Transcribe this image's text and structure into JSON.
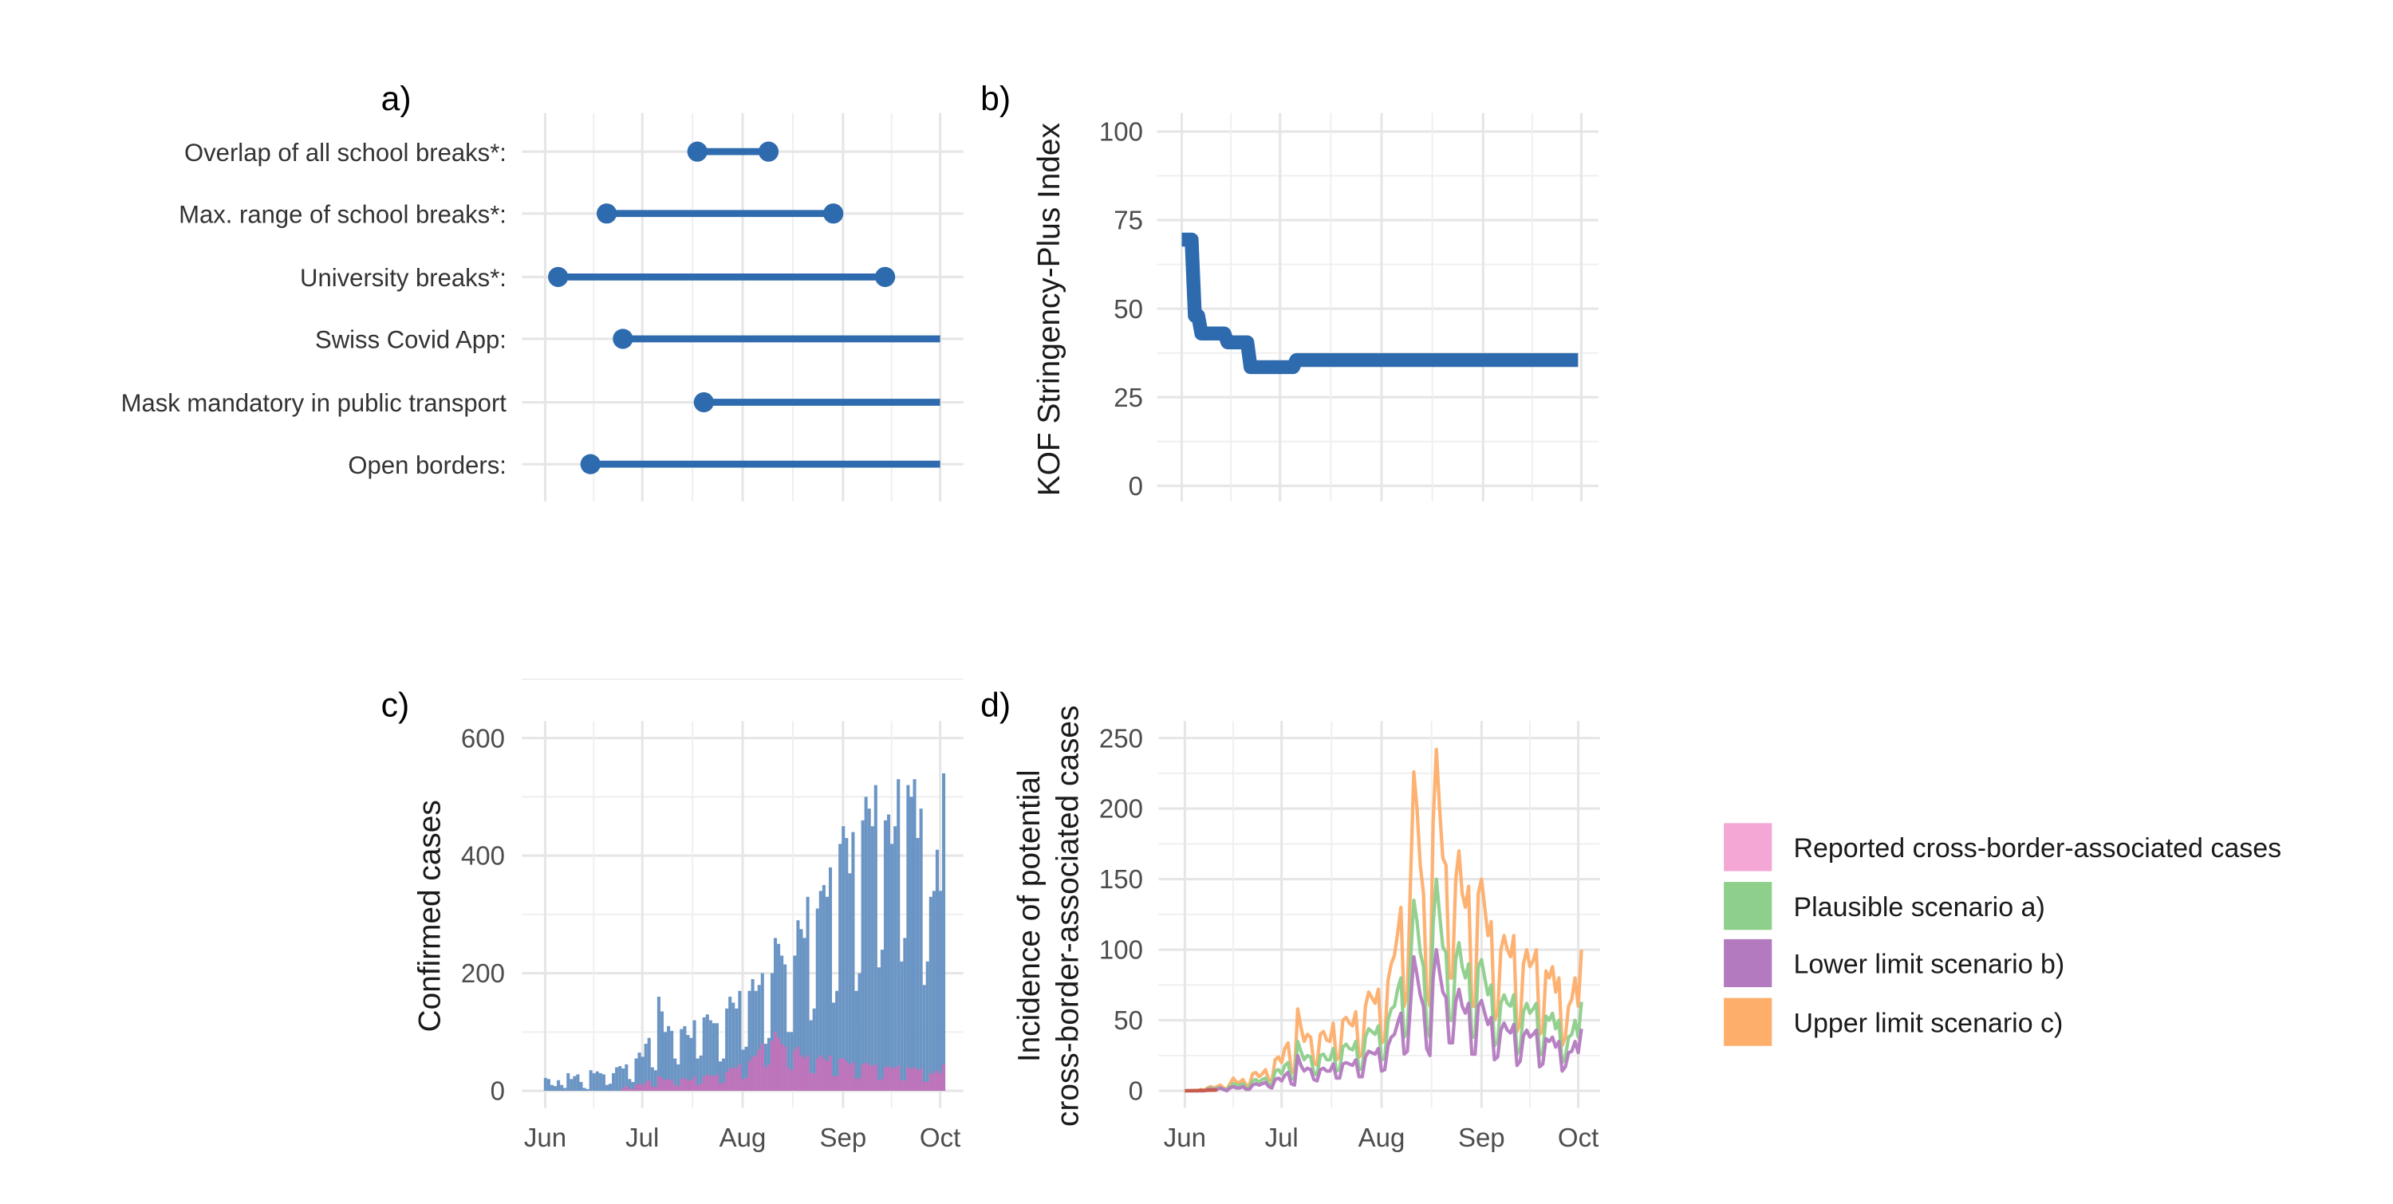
{
  "colors": {
    "blue": "#2e6aae",
    "blue_bars": "#6b95c4",
    "pink": "#f4a6d4",
    "green": "#8ecf8b",
    "purple": "#b47ac0",
    "orange": "#fdae6b"
  },
  "chart_data": [
    {
      "panel": "a)",
      "type": "dumbbell",
      "date_range": [
        "2020-06-01",
        "2020-10-01"
      ],
      "open_ended_to": "2020-10-01",
      "rows": [
        {
          "label": "Overlap of all school breaks*:",
          "start": "2020-07-18",
          "end": "2020-08-09"
        },
        {
          "label": "Max. range of school breaks*:",
          "start": "2020-06-20",
          "end": "2020-08-29"
        },
        {
          "label": "University breaks*:",
          "start": "2020-06-05",
          "end": "2020-09-14"
        },
        {
          "label": "Swiss Covid App:",
          "start": "2020-06-25",
          "end": null
        },
        {
          "label": "Mask mandatory in public transport",
          "start": "2020-07-20",
          "end": null
        },
        {
          "label": "Open borders:",
          "start": "2020-06-15",
          "end": null
        }
      ]
    },
    {
      "panel": "b)",
      "type": "line",
      "ylabel": "KOF Stringency-Plus Index",
      "ylim": [
        0,
        100
      ],
      "yticks": [
        0,
        25,
        50,
        75,
        100
      ],
      "step_points": [
        [
          "2020-06-01",
          69.5
        ],
        [
          "2020-06-04",
          69.5
        ],
        [
          "2020-06-05",
          48
        ],
        [
          "2020-06-06",
          48
        ],
        [
          "2020-06-07",
          43
        ],
        [
          "2020-06-14",
          43
        ],
        [
          "2020-06-15",
          40.5
        ],
        [
          "2020-06-21",
          40.5
        ],
        [
          "2020-06-22",
          33.5
        ],
        [
          "2020-07-05",
          33.5
        ],
        [
          "2020-07-06",
          35.5
        ],
        [
          "2020-09-30",
          35.5
        ]
      ]
    },
    {
      "panel": "c)",
      "type": "bar",
      "ylabel": "Confirmed cases",
      "ylim": [
        0,
        620
      ],
      "yticks": [
        0,
        200,
        400,
        600
      ],
      "x_start": "2020-06-01",
      "x_ticks": [
        "Jun",
        "Jul",
        "Aug",
        "Sep",
        "Oct"
      ],
      "confirmed_cases": [
        22,
        20,
        10,
        8,
        18,
        10,
        5,
        30,
        20,
        25,
        28,
        15,
        5,
        3,
        35,
        30,
        33,
        30,
        28,
        10,
        12,
        30,
        40,
        42,
        38,
        45,
        20,
        15,
        55,
        65,
        58,
        80,
        90,
        40,
        35,
        160,
        135,
        100,
        110,
        102,
        55,
        45,
        105,
        110,
        95,
        90,
        120,
        55,
        60,
        125,
        130,
        120,
        115,
        115,
        50,
        55,
        140,
        160,
        150,
        140,
        170,
        70,
        75,
        170,
        190,
        170,
        180,
        200,
        80,
        90,
        200,
        260,
        250,
        230,
        215,
        100,
        100,
        230,
        290,
        275,
        260,
        330,
        120,
        140,
        310,
        340,
        350,
        330,
        380,
        150,
        170,
        420,
        450,
        430,
        370,
        440,
        170,
        200,
        460,
        500,
        480,
        450,
        520,
        210,
        240,
        460,
        470,
        420,
        450,
        530,
        220,
        260,
        520,
        500,
        530,
        430,
        480,
        180,
        220,
        330,
        340,
        410,
        340,
        540
      ],
      "cross_border_cases": [
        0,
        0,
        0,
        0,
        0,
        0,
        0,
        0,
        0,
        0,
        0,
        0,
        0,
        0,
        0,
        0,
        0,
        0,
        0,
        0,
        0,
        0,
        0,
        0,
        5,
        8,
        4,
        3,
        10,
        12,
        10,
        15,
        18,
        8,
        6,
        25,
        22,
        18,
        20,
        18,
        10,
        8,
        20,
        22,
        18,
        18,
        24,
        10,
        12,
        25,
        27,
        26,
        25,
        28,
        12,
        14,
        32,
        38,
        40,
        38,
        45,
        20,
        22,
        50,
        58,
        60,
        70,
        80,
        40,
        45,
        85,
        100,
        90,
        80,
        75,
        40,
        35,
        70,
        75,
        60,
        55,
        60,
        30,
        30,
        55,
        60,
        55,
        50,
        60,
        25,
        25,
        55,
        55,
        50,
        45,
        48,
        20,
        22,
        45,
        48,
        45,
        42,
        45,
        18,
        20,
        40,
        42,
        38,
        40,
        42,
        18,
        18,
        40,
        38,
        40,
        35,
        38,
        15,
        16,
        30,
        30,
        35,
        30,
        45
      ]
    },
    {
      "panel": "d)",
      "type": "line",
      "ylabel": [
        "Incidence of potential",
        "cross-border-associated cases"
      ],
      "ylim": [
        0,
        250
      ],
      "yticks": [
        0,
        50,
        100,
        150,
        200,
        250
      ],
      "x_start": "2020-06-01",
      "x_ticks": [
        "Jun",
        "Jul",
        "Aug",
        "Sep",
        "Oct"
      ],
      "series": [
        {
          "name": "Upper limit scenario c)",
          "color": "#fdae6b",
          "values": [
            0,
            0,
            0,
            0,
            0,
            1,
            0,
            2,
            3,
            2,
            3,
            4,
            2,
            1,
            5,
            9,
            6,
            6,
            8,
            4,
            4,
            12,
            13,
            10,
            12,
            15,
            8,
            7,
            22,
            24,
            20,
            30,
            34,
            15,
            12,
            58,
            45,
            35,
            40,
            38,
            20,
            18,
            40,
            42,
            36,
            35,
            48,
            22,
            24,
            50,
            52,
            48,
            46,
            56,
            24,
            26,
            60,
            70,
            66,
            62,
            72,
            34,
            36,
            78,
            90,
            96,
            112,
            130,
            60,
            70,
            150,
            226,
            200,
            160,
            140,
            70,
            60,
            190,
            242,
            200,
            165,
            160,
            80,
            80,
            150,
            170,
            140,
            130,
            145,
            60,
            60,
            140,
            150,
            130,
            110,
            120,
            50,
            55,
            100,
            110,
            100,
            95,
            110,
            42,
            48,
            90,
            100,
            88,
            92,
            100,
            40,
            42,
            85,
            80,
            88,
            70,
            80,
            32,
            38,
            60,
            65,
            80,
            60,
            100
          ]
        },
        {
          "name": "Plausible scenario a)",
          "color": "#8ecf8b",
          "values": [
            0,
            0,
            0,
            0,
            0,
            0,
            0,
            1,
            2,
            1,
            2,
            2,
            1,
            1,
            3,
            5,
            4,
            4,
            5,
            2,
            2,
            7,
            8,
            6,
            8,
            9,
            5,
            4,
            14,
            15,
            12,
            18,
            20,
            9,
            8,
            35,
            28,
            22,
            25,
            24,
            13,
            11,
            25,
            26,
            22,
            22,
            30,
            14,
            15,
            31,
            33,
            30,
            29,
            35,
            15,
            16,
            38,
            44,
            42,
            40,
            46,
            22,
            23,
            50,
            58,
            60,
            72,
            80,
            38,
            42,
            92,
            135,
            120,
            98,
            88,
            45,
            38,
            118,
            150,
            125,
            102,
            98,
            50,
            50,
            93,
            105,
            88,
            80,
            90,
            38,
            38,
            88,
            93,
            80,
            68,
            75,
            32,
            35,
            62,
            68,
            62,
            60,
            68,
            26,
            30,
            56,
            62,
            55,
            58,
            62,
            25,
            27,
            53,
            50,
            55,
            44,
            50,
            20,
            24,
            38,
            40,
            50,
            38,
            63
          ]
        },
        {
          "name": "Lower limit scenario b)",
          "color": "#b47ac0",
          "values": [
            0,
            0,
            0,
            0,
            0,
            0,
            0,
            1,
            1,
            1,
            1,
            2,
            1,
            0,
            2,
            3,
            2,
            2,
            3,
            1,
            1,
            4,
            5,
            4,
            5,
            6,
            3,
            2,
            8,
            9,
            7,
            11,
            13,
            5,
            4,
            25,
            18,
            14,
            16,
            15,
            8,
            7,
            15,
            16,
            14,
            14,
            19,
            9,
            9,
            19,
            20,
            19,
            18,
            22,
            10,
            10,
            24,
            28,
            27,
            26,
            30,
            14,
            15,
            32,
            38,
            40,
            48,
            55,
            26,
            28,
            62,
            95,
            82,
            68,
            60,
            30,
            25,
            80,
            100,
            84,
            70,
            66,
            34,
            34,
            63,
            72,
            60,
            55,
            62,
            26,
            26,
            60,
            64,
            55,
            47,
            52,
            22,
            24,
            43,
            48,
            43,
            41,
            47,
            18,
            21,
            39,
            43,
            38,
            40,
            43,
            17,
            19,
            37,
            35,
            38,
            31,
            35,
            14,
            17,
            27,
            28,
            35,
            27,
            44
          ]
        },
        {
          "name": "Reported cross-border-associated cases",
          "color": "#f4a6d4",
          "values": []
        }
      ]
    }
  ],
  "legend": [
    {
      "label": "Reported cross-border-associated cases",
      "color": "#f4a6d4"
    },
    {
      "label": "Plausible scenario a)",
      "color": "#8ecf8b"
    },
    {
      "label": "Lower limit scenario b)",
      "color": "#b47ac0"
    },
    {
      "label": "Upper limit scenario c)",
      "color": "#fdae6b"
    }
  ]
}
